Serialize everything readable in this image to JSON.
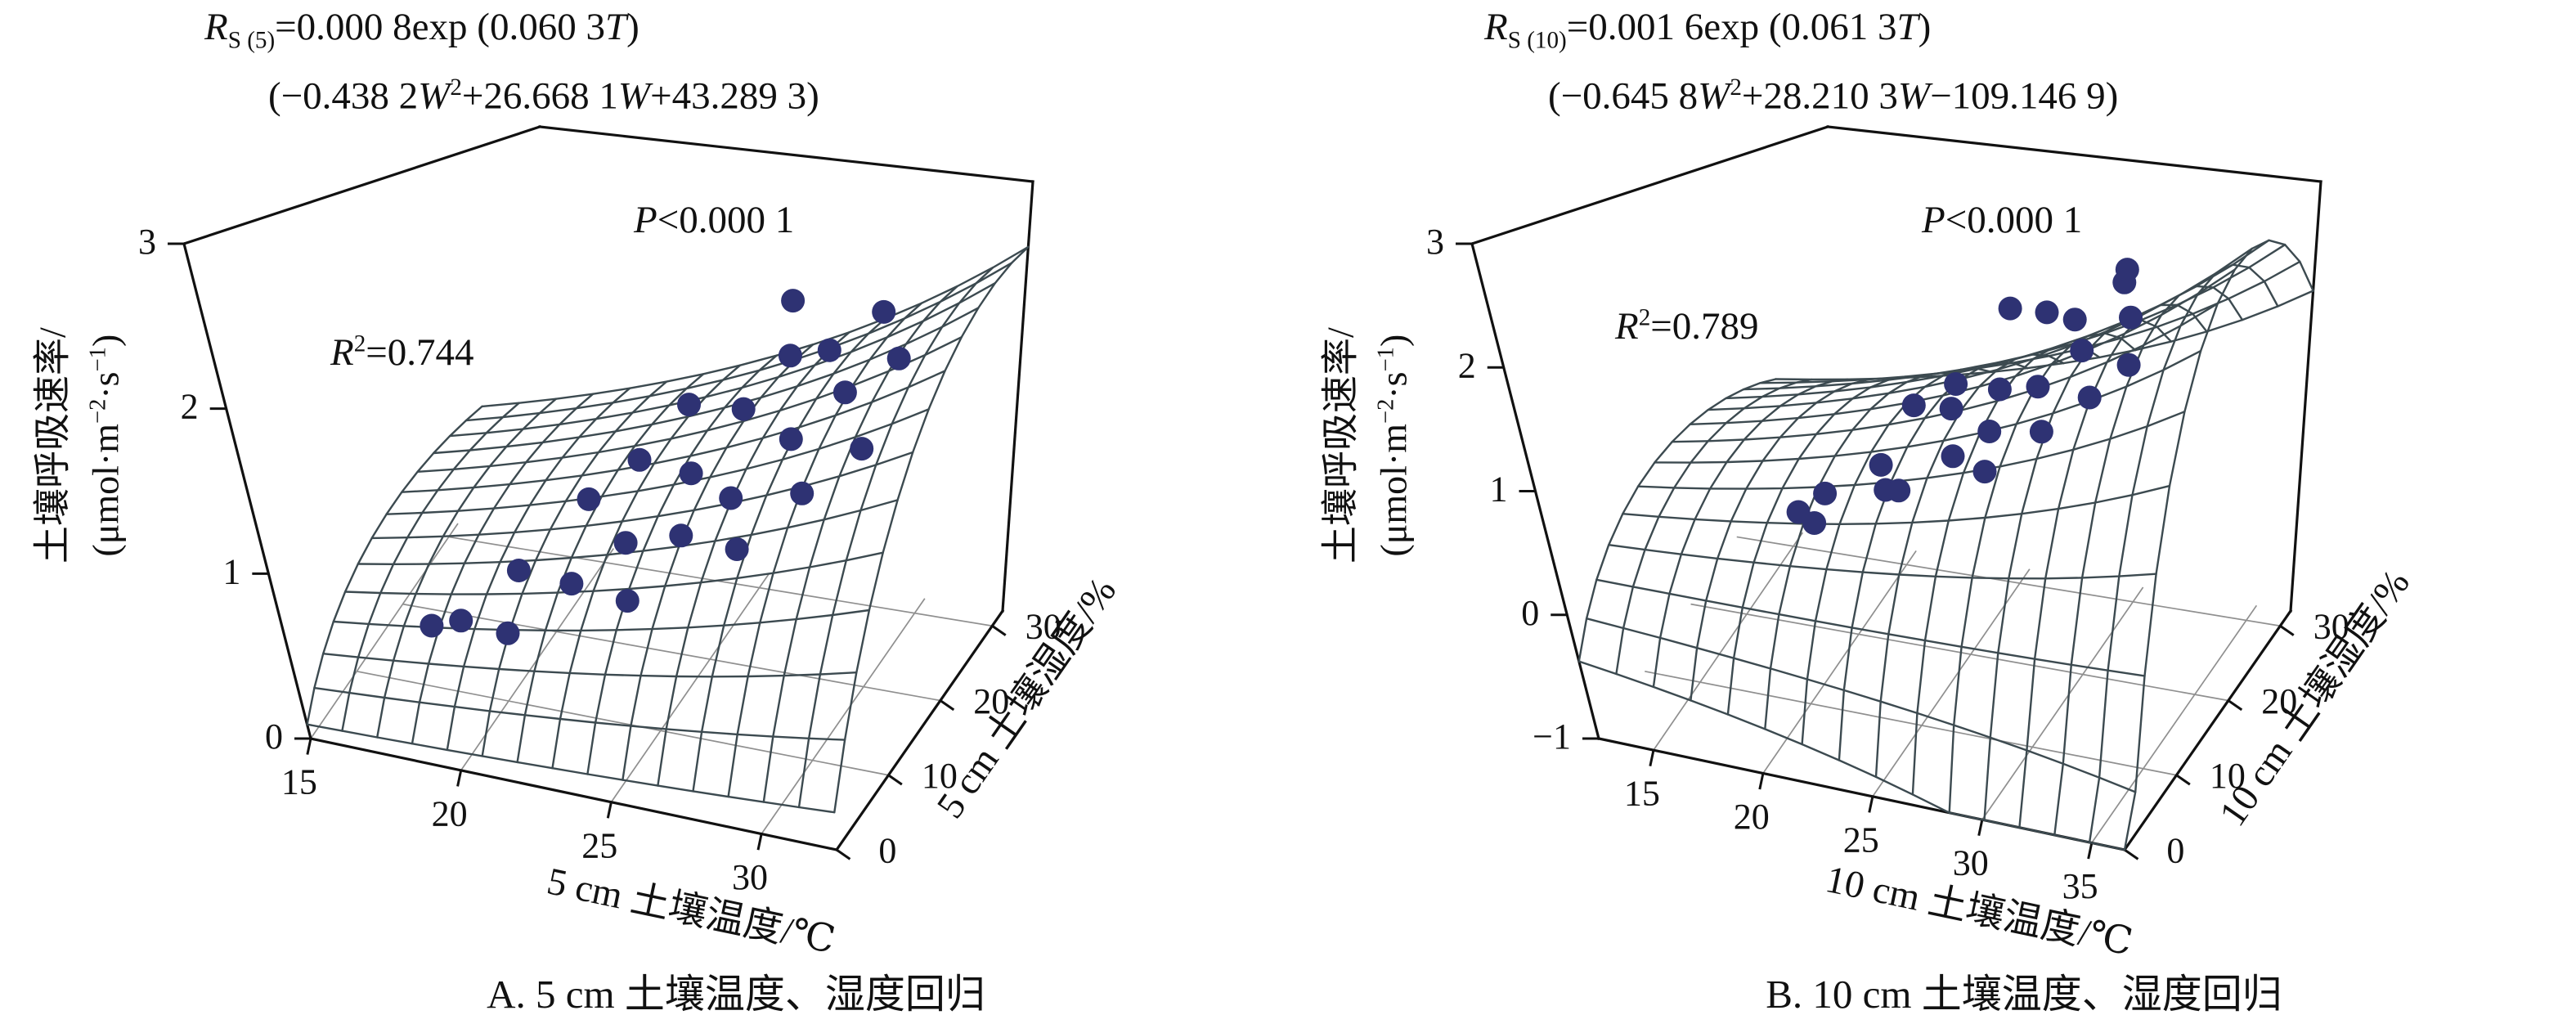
{
  "colors": {
    "point": "#2e3273",
    "mesh": "#3c4a50",
    "frame": "#111111",
    "floor_grid": "#8f8f8f",
    "text": "#111111",
    "background": "#ffffff"
  },
  "chart_data": [
    {
      "type": "3d-surface-scatter",
      "panel": "A",
      "caption": "A. 5 cm 土壤温度、湿度回归",
      "equation_text": [
        "R S(5)=0.000 8exp (0.060 3T)",
        "(−0.438 2W2+26.668 1W+43.289 3)"
      ],
      "equation_rich": [
        [
          {
            "t": "R",
            "i": true
          },
          {
            "t": "S (5)",
            "sub": true
          },
          {
            "t": "=0.000 8exp (0.060 3"
          },
          {
            "t": "T",
            "i": true
          },
          {
            "t": ")"
          }
        ],
        [
          {
            "t": "(−0.438 2"
          },
          {
            "t": "W",
            "i": true
          },
          {
            "t": "2",
            "sup": true
          },
          {
            "t": "+26.668 1"
          },
          {
            "t": "W",
            "i": true
          },
          {
            "t": "+43.289 3)"
          }
        ]
      ],
      "p_text": "P<0.000 1",
      "p_rich": [
        {
          "t": "P",
          "i": true
        },
        {
          "t": "<0.000 1"
        }
      ],
      "r2_text": "R2=0.744",
      "r2_rich": [
        {
          "t": "R",
          "i": true
        },
        {
          "t": "2",
          "sup": true
        },
        {
          "t": "=0.744"
        }
      ],
      "xlabel": "5 cm 土壤温度/℃",
      "ylabel": "5 cm 土壤湿度/%",
      "zlabel": "土壤呼吸速率/(μmol·m−2·s−1)",
      "zlabel_line1": "土壤呼吸速率/",
      "zlabel_line2_rich": [
        {
          "t": "(μmol·m"
        },
        {
          "t": "−2",
          "sup": true
        },
        {
          "t": "·s"
        },
        {
          "t": "−1",
          "sup": true
        },
        {
          "t": ")"
        }
      ],
      "x_ticks": [
        15,
        20,
        25,
        30
      ],
      "y_ticks": [
        0,
        10,
        20,
        30
      ],
      "z_ticks": [
        0,
        1,
        2,
        3
      ],
      "x_range": [
        15,
        32.5
      ],
      "y_range": [
        0,
        32
      ],
      "z_range": [
        0,
        3
      ],
      "surface_model": {
        "scale_a": 0.0008,
        "exp_b": 0.0603,
        "w2": -0.4382,
        "w1": 26.6681,
        "w0": 43.2893
      },
      "points": [
        [
          17.3,
          12,
          0.3
        ],
        [
          17.9,
          14,
          0.27
        ],
        [
          19.5,
          16,
          0.58
        ],
        [
          20.2,
          10,
          0.45
        ],
        [
          21.0,
          20,
          0.95
        ],
        [
          21.6,
          14,
          0.66
        ],
        [
          22.2,
          22,
          1.18
        ],
        [
          22.8,
          17,
          0.85
        ],
        [
          23.3,
          24,
          1.52
        ],
        [
          23.8,
          12,
          0.72
        ],
        [
          24.3,
          20,
          1.25
        ],
        [
          24.8,
          16,
          1.02
        ],
        [
          25.3,
          23,
          1.6
        ],
        [
          25.8,
          19,
          1.18
        ],
        [
          26.3,
          25,
          1.92
        ],
        [
          26.8,
          15,
          1.05
        ],
        [
          27.3,
          21,
          1.55
        ],
        [
          27.8,
          24,
          2.05
        ],
        [
          28.3,
          18,
          1.35
        ],
        [
          28.8,
          22,
          1.88
        ],
        [
          29.3,
          25,
          2.32
        ],
        [
          29.8,
          20,
          1.62
        ],
        [
          30.3,
          23,
          2.12
        ],
        [
          27.5,
          20,
          2.55
        ]
      ]
    },
    {
      "type": "3d-surface-scatter",
      "panel": "B",
      "caption": "B. 10 cm 土壤温度、湿度回归",
      "equation_text": [
        "R S(10)=0.001 6exp (0.061 3T)",
        "(−0.645 8W2+28.210 3W−109.146 9)"
      ],
      "equation_rich": [
        [
          {
            "t": "R",
            "i": true
          },
          {
            "t": "S (10)",
            "sub": true
          },
          {
            "t": "=0.001 6exp (0.061 3"
          },
          {
            "t": "T",
            "i": true
          },
          {
            "t": ")"
          }
        ],
        [
          {
            "t": "(−0.645 8"
          },
          {
            "t": "W",
            "i": true
          },
          {
            "t": "2",
            "sup": true
          },
          {
            "t": "+28.210 3"
          },
          {
            "t": "W",
            "i": true
          },
          {
            "t": "−109.146 9)"
          }
        ]
      ],
      "p_text": "P<0.000 1",
      "p_rich": [
        {
          "t": "P",
          "i": true
        },
        {
          "t": "<0.000 1"
        }
      ],
      "r2_text": "R2=0.789",
      "r2_rich": [
        {
          "t": "R",
          "i": true
        },
        {
          "t": "2",
          "sup": true
        },
        {
          "t": "=0.789"
        }
      ],
      "xlabel": "10 cm 土壤温度/℃",
      "ylabel": "10 cm 土壤湿度/%",
      "zlabel": "土壤呼吸速率/(μmol·m−2·s−1)",
      "zlabel_line1": "土壤呼吸速率/",
      "zlabel_line2_rich": [
        {
          "t": "(μmol·m"
        },
        {
          "t": "−2",
          "sup": true
        },
        {
          "t": "·s"
        },
        {
          "t": "−1",
          "sup": true
        },
        {
          "t": ")"
        }
      ],
      "x_ticks": [
        15,
        20,
        25,
        30,
        35
      ],
      "y_ticks": [
        0,
        10,
        20,
        30
      ],
      "z_ticks": [
        -1,
        0,
        1,
        2,
        3
      ],
      "x_range": [
        12.5,
        36.5
      ],
      "y_range": [
        0,
        32
      ],
      "z_range": [
        -1,
        3
      ],
      "surface_model": {
        "scale_a": 0.0016,
        "exp_b": 0.0613,
        "w2": -0.6458,
        "w1": 28.2103,
        "w0": -109.1469
      },
      "points": [
        [
          19.0,
          14,
          0.42
        ],
        [
          19.6,
          16,
          0.5
        ],
        [
          20.3,
          12,
          0.48
        ],
        [
          21.5,
          18,
          0.72
        ],
        [
          22.0,
          21,
          1.12
        ],
        [
          22.6,
          15,
          0.7
        ],
        [
          23.2,
          23,
          1.25
        ],
        [
          23.8,
          13,
          0.85
        ],
        [
          24.3,
          19,
          1.28
        ],
        [
          24.8,
          25,
          1.9
        ],
        [
          25.3,
          16,
          1.05
        ],
        [
          25.8,
          21,
          1.4
        ],
        [
          26.3,
          18,
          1.2
        ],
        [
          26.8,
          24,
          1.98
        ],
        [
          27.3,
          14,
          1.1
        ],
        [
          27.8,
          20,
          1.55
        ],
        [
          28.4,
          23,
          2.02
        ],
        [
          28.9,
          17,
          1.35
        ],
        [
          29.4,
          21,
          1.88
        ],
        [
          29.9,
          25,
          2.3
        ],
        [
          30.4,
          19,
          1.6
        ],
        [
          30.9,
          23,
          2.12
        ],
        [
          31.5,
          21,
          1.82
        ],
        [
          31.0,
          22,
          2.62
        ]
      ]
    }
  ]
}
